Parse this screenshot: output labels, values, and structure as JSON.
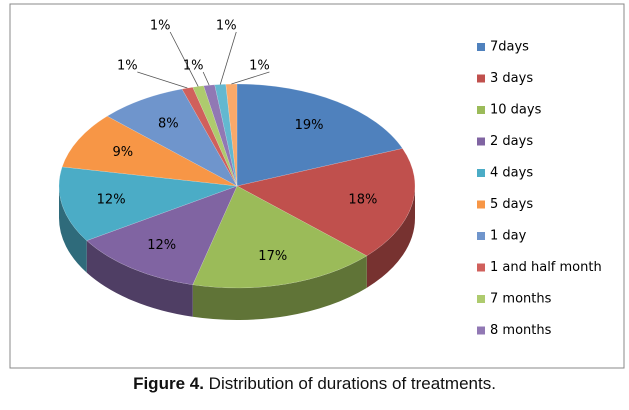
{
  "chart_data": {
    "type": "pie3d",
    "caption_label": "Figure 4.",
    "caption": "Distribution of durations of treatments.",
    "categories": [
      "7days",
      "3 days",
      "10 days",
      "2 days",
      "4 days",
      "5 days",
      "1 day",
      "1 and half month",
      "7 months",
      "8 months",
      null,
      null
    ],
    "values": [
      19,
      18,
      17,
      12,
      12,
      9,
      8,
      1,
      1,
      1,
      1,
      1
    ],
    "value_labels": [
      "19%",
      "18%",
      "17%",
      "12%",
      "12%",
      "9%",
      "8%",
      "1%",
      "1%",
      "1%",
      "1%",
      "1%"
    ],
    "colors": [
      "#4f81bd",
      "#c0504d",
      "#9bbb59",
      "#8064a2",
      "#4bacc6",
      "#f79646",
      "#6f95cc",
      "#d0605c",
      "#aecb6e",
      "#9178b4",
      "#63b8d0",
      "#f9a96a"
    ],
    "legend": "right"
  }
}
